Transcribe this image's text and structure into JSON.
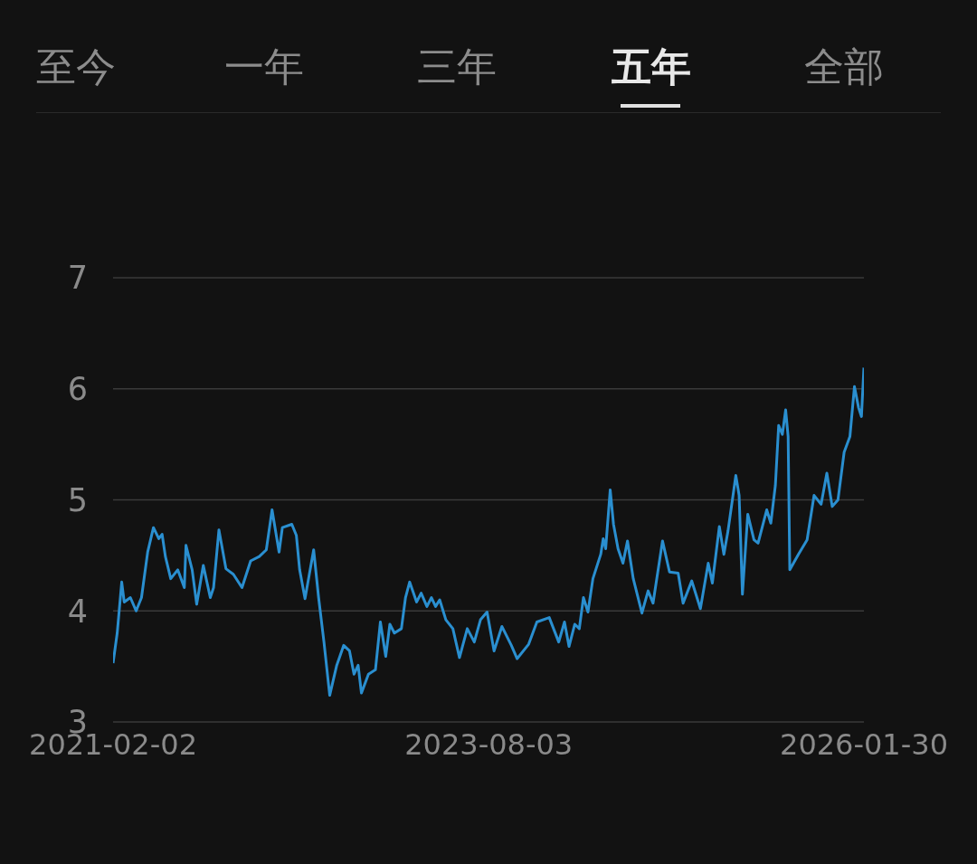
{
  "chart_data": {
    "type": "line",
    "annotations": [
      "至今",
      "一年",
      "三年",
      "五年",
      "全部"
    ],
    "x": [
      "2021-02-02",
      "2021-02-12",
      "2021-02-23",
      "2021-03-01",
      "2021-03-16",
      "2021-03-30",
      "2021-04-12",
      "2021-04-27",
      "2021-05-11",
      "2021-05-24",
      "2021-06-01",
      "2021-06-09",
      "2021-06-22",
      "2021-07-09",
      "2021-07-25",
      "2021-07-29",
      "2021-08-13",
      "2021-08-24",
      "2021-09-09",
      "2021-09-26",
      "2021-10-04",
      "2021-10-17",
      "2021-11-03",
      "2021-11-21",
      "2021-12-12",
      "2022-01-02",
      "2022-01-23",
      "2022-02-09",
      "2022-02-23",
      "2022-03-12",
      "2022-03-20",
      "2022-04-12",
      "2022-04-23",
      "2022-05-01",
      "2022-05-14",
      "2022-06-04",
      "2022-06-16",
      "2022-06-29",
      "2022-07-13",
      "2022-07-30",
      "2022-08-16",
      "2022-08-30",
      "2022-09-10",
      "2022-09-20",
      "2022-09-28",
      "2022-10-15",
      "2022-11-01",
      "2022-11-13",
      "2022-11-26",
      "2022-12-06",
      "2022-12-17",
      "2023-01-03",
      "2023-01-13",
      "2023-01-23",
      "2023-02-09",
      "2023-02-20",
      "2023-03-06",
      "2023-03-17",
      "2023-03-27",
      "2023-04-06",
      "2023-04-21",
      "2023-05-08",
      "2023-05-24",
      "2023-06-12",
      "2023-06-29",
      "2023-07-14",
      "2023-07-30",
      "2023-08-16",
      "2023-09-04",
      "2023-09-27",
      "2023-10-11",
      "2023-11-08",
      "2023-11-28",
      "2023-12-28",
      "2024-01-20",
      "2024-02-03",
      "2024-02-14",
      "2024-02-28",
      "2024-03-10",
      "2024-03-20",
      "2024-03-31",
      "2024-04-12",
      "2024-05-01",
      "2024-05-07",
      "2024-05-13",
      "2024-05-24",
      "2024-06-01",
      "2024-06-12",
      "2024-06-24",
      "2024-07-05",
      "2024-07-19",
      "2024-08-09",
      "2024-08-24",
      "2024-09-05",
      "2024-09-28",
      "2024-10-15",
      "2024-11-05",
      "2024-11-17",
      "2024-12-08",
      "2024-12-29",
      "2025-01-17",
      "2025-01-27",
      "2025-02-13",
      "2025-02-24",
      "2025-03-06",
      "2025-03-25",
      "2025-04-02",
      "2025-04-10",
      "2025-04-23",
      "2025-05-08",
      "2025-05-18",
      "2025-06-08",
      "2025-06-18",
      "2025-06-29",
      "2025-07-07",
      "2025-07-16",
      "2025-07-24",
      "2025-07-30",
      "2025-08-03",
      "2025-08-24",
      "2025-09-14",
      "2025-10-01",
      "2025-10-18",
      "2025-11-01",
      "2025-11-14",
      "2025-11-28",
      "2025-12-13",
      "2025-12-27",
      "2026-01-07",
      "2026-01-17",
      "2026-01-24",
      "2026-01-30"
    ],
    "series": [
      {
        "color": "#2a8fd0",
        "values": [
          3.53,
          3.8,
          4.26,
          4.08,
          4.12,
          4.0,
          4.12,
          4.53,
          4.75,
          4.65,
          4.69,
          4.49,
          4.29,
          4.37,
          4.21,
          4.59,
          4.37,
          4.06,
          4.41,
          4.12,
          4.21,
          4.73,
          4.38,
          4.33,
          4.21,
          4.45,
          4.49,
          4.55,
          4.91,
          4.53,
          4.75,
          4.78,
          4.68,
          4.37,
          4.11,
          4.55,
          4.12,
          3.72,
          3.24,
          3.51,
          3.69,
          3.64,
          3.43,
          3.51,
          3.26,
          3.43,
          3.47,
          3.9,
          3.59,
          3.88,
          3.8,
          3.84,
          4.12,
          4.26,
          4.08,
          4.16,
          4.04,
          4.12,
          4.04,
          4.1,
          3.92,
          3.84,
          3.58,
          3.84,
          3.72,
          3.92,
          3.99,
          3.64,
          3.86,
          3.69,
          3.57,
          3.7,
          3.9,
          3.94,
          3.72,
          3.9,
          3.68,
          3.88,
          3.84,
          4.12,
          3.99,
          4.29,
          4.51,
          4.65,
          4.56,
          5.09,
          4.78,
          4.56,
          4.43,
          4.63,
          4.29,
          3.98,
          4.18,
          4.07,
          4.63,
          4.35,
          4.34,
          4.07,
          4.27,
          4.02,
          4.43,
          4.25,
          4.76,
          4.51,
          4.72,
          5.22,
          5.04,
          4.15,
          4.87,
          4.64,
          4.61,
          4.91,
          4.79,
          5.13,
          5.67,
          5.59,
          5.81,
          5.57,
          4.37,
          4.51,
          4.64,
          5.04,
          4.96,
          5.24,
          4.94,
          5.0,
          5.43,
          5.57,
          6.02,
          5.83,
          5.75,
          6.19
        ]
      }
    ],
    "xlim": [
      "2021-02-02",
      "2026-01-30"
    ],
    "xticks": [
      "2021-02-02",
      "2023-08-03",
      "2026-01-30"
    ],
    "ylim": [
      3,
      7
    ],
    "yticks": [
      3,
      4,
      5,
      6,
      7
    ],
    "grid": "y",
    "legend": false,
    "marker": "none",
    "line_style": "solid"
  }
}
